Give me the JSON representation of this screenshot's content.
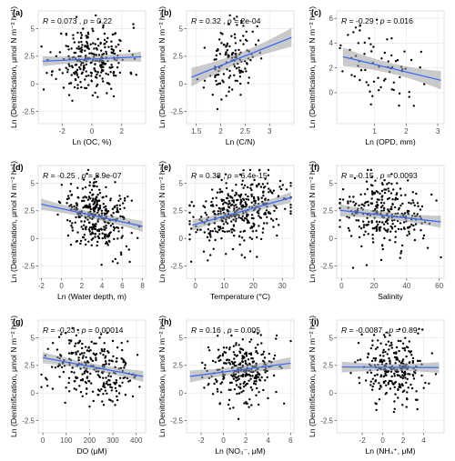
{
  "chart_data": [
    {
      "id": "a",
      "tag": "(a)",
      "type": "scatter",
      "xlabel": "Ln (OC, %)",
      "ylabel": "Ln (Denitrification, μmol N m⁻² h⁻¹)",
      "xlim": [
        -3.6,
        3.6
      ],
      "xticks": [
        -2,
        0,
        2
      ],
      "ylim": [
        -3.6,
        6.6
      ],
      "yticks": [
        -2.5,
        0,
        2.5,
        5
      ],
      "stats": {
        "R": "0.073",
        "p": "0.22"
      },
      "fit": {
        "x0": -3.3,
        "y0": 2.05,
        "x1": 3.3,
        "y1": 2.45
      },
      "ci": 0.3,
      "n": 280,
      "xmean": 0.0,
      "xsd": 1.2,
      "ymin": -3.0,
      "ymax": 6.2,
      "seed": 11,
      "show_ylabel": true
    },
    {
      "id": "b",
      "tag": "(b)",
      "type": "scatter",
      "xlabel": "Ln (C/N)",
      "ylabel": "Ln (Denitrification, μmol N m⁻² h⁻¹)",
      "xlim": [
        1.3,
        3.5
      ],
      "xticks": [
        1.5,
        2.0,
        2.5,
        3.0
      ],
      "ylim": [
        -3.6,
        6.6
      ],
      "yticks": [
        -2.5,
        0,
        2.5,
        5
      ],
      "stats": {
        "R": "0.32",
        "p": "2e-04"
      },
      "fit": {
        "x0": 1.4,
        "y0": 0.6,
        "x1": 3.45,
        "y1": 4.2
      },
      "ci": 0.7,
      "n": 130,
      "xmean": 2.2,
      "xsd": 0.25,
      "ymin": -2.5,
      "ymax": 6.2,
      "seed": 23,
      "show_ylabel": true
    },
    {
      "id": "c",
      "tag": "(c)",
      "type": "scatter",
      "xlabel": "Ln (OPD, mm)",
      "ylabel": "Ln (Denitrification, μmol N m⁻² h⁻¹)",
      "xlim": [
        -0.2,
        3.2
      ],
      "xticks": [
        1,
        2,
        3
      ],
      "ylim": [
        -2.5,
        6.6
      ],
      "yticks": [
        0,
        2,
        4,
        6
      ],
      "stats": {
        "R": "-0.29",
        "p": "0.016"
      },
      "fit": {
        "x0": 0.0,
        "y0": 2.9,
        "x1": 3.1,
        "y1": 1.0
      },
      "ci": 0.6,
      "n": 70,
      "xmean": 1.2,
      "xsd": 0.6,
      "ymin": -2.0,
      "ymax": 6.0,
      "seed": 37,
      "show_ylabel": true
    },
    {
      "id": "d",
      "tag": "(d)",
      "type": "scatter",
      "xlabel": "Ln (Water depth, m)",
      "ylabel": "Ln (Denitrification, μmol N m⁻² h⁻¹)",
      "xlim": [
        -2.3,
        8.3
      ],
      "xticks": [
        -2,
        0,
        2,
        4,
        6,
        8
      ],
      "ylim": [
        -3.6,
        6.6
      ],
      "yticks": [
        -2.5,
        0,
        2.5,
        5
      ],
      "stats": {
        "R": "-0.25",
        "p": "8.9e-07"
      },
      "fit": {
        "x0": -2,
        "y0": 3.1,
        "x1": 8,
        "y1": 1.1
      },
      "ci": 0.35,
      "n": 330,
      "xmean": 3.5,
      "xsd": 1.6,
      "ymin": -3.0,
      "ymax": 6.2,
      "seed": 41,
      "show_ylabel": true
    },
    {
      "id": "e",
      "tag": "(e)",
      "type": "scatter",
      "xlabel": "Temperature (°C)",
      "ylabel": "Ln (Denitrification, μmol N m⁻² h⁻¹)",
      "xlim": [
        -3,
        34
      ],
      "xticks": [
        0,
        10,
        20,
        30
      ],
      "ylim": [
        -3.6,
        6.6
      ],
      "yticks": [
        -2.5,
        0,
        2.5,
        5
      ],
      "stats": {
        "R": "0.38",
        "p": "6.4e-15"
      },
      "fit": {
        "x0": -1,
        "y0": 1.2,
        "x1": 33,
        "y1": 3.7
      },
      "ci": 0.35,
      "n": 380,
      "xmean": 16,
      "xsd": 9,
      "ymin": -3.0,
      "ymax": 6.2,
      "seed": 53,
      "show_ylabel": true
    },
    {
      "id": "f",
      "tag": "(f)",
      "type": "scatter",
      "xlabel": "Salinity",
      "ylabel": "Ln (Denitrification, μmol N m⁻² h⁻¹)",
      "xlim": [
        -3,
        63
      ],
      "xticks": [
        0,
        20,
        40,
        60
      ],
      "ylim": [
        -3.6,
        6.6
      ],
      "yticks": [
        -2.5,
        0,
        2.5,
        5
      ],
      "stats": {
        "R": "-0.15",
        "p": "0.0093"
      },
      "fit": {
        "x0": -1,
        "y0": 2.55,
        "x1": 61,
        "y1": 1.5
      },
      "ci": 0.4,
      "n": 290,
      "xmean": 25,
      "xsd": 12,
      "ymin": -3.0,
      "ymax": 6.2,
      "seed": 67,
      "show_ylabel": true
    },
    {
      "id": "g",
      "tag": "(g)",
      "type": "scatter",
      "xlabel": "DO (μM)",
      "ylabel": "Ln (Denitrification, μmol N m⁻² h⁻¹)",
      "xlim": [
        -20,
        440
      ],
      "xticks": [
        0,
        100,
        200,
        300,
        400
      ],
      "ylim": [
        -3.6,
        6.6
      ],
      "yticks": [
        -2.5,
        0,
        2.5,
        5
      ],
      "stats": {
        "R": "-0.23",
        "p": "0.00014"
      },
      "fit": {
        "x0": 0,
        "y0": 3.2,
        "x1": 430,
        "y1": 1.5
      },
      "ci": 0.35,
      "n": 260,
      "xmean": 210,
      "xsd": 95,
      "ymin": -2.8,
      "ymax": 6.2,
      "seed": 79,
      "show_ylabel": true
    },
    {
      "id": "h",
      "tag": "(h)",
      "type": "scatter",
      "xlabel": "Ln (NO₃⁻, μM)",
      "ylabel": "Ln (Denitrification, μmol N m⁻² h⁻¹)",
      "xlim": [
        -3.3,
        6.3
      ],
      "xticks": [
        -2,
        0,
        2,
        4,
        6
      ],
      "ylim": [
        -3.6,
        6.6
      ],
      "yticks": [
        -2.5,
        0,
        2.5,
        5
      ],
      "stats": {
        "R": "0.16",
        "p": "0.005"
      },
      "fit": {
        "x0": -3,
        "y0": 1.5,
        "x1": 6,
        "y1": 2.7
      },
      "ci": 0.4,
      "n": 280,
      "xmean": 1.5,
      "xsd": 1.6,
      "ymin": -2.8,
      "ymax": 6.0,
      "seed": 97,
      "show_ylabel": true
    },
    {
      "id": "i",
      "tag": "(i)",
      "type": "scatter",
      "xlabel": "Ln (NH₄⁺, μM)",
      "ylabel": "Ln (Denitrification, μmol N m⁻² h⁻¹)",
      "xlim": [
        -4.5,
        6.0
      ],
      "xticks": [
        -2,
        0,
        2,
        4
      ],
      "ylim": [
        -3.6,
        6.6
      ],
      "yticks": [
        -2.5,
        0,
        2.5,
        5
      ],
      "stats": {
        "R": "-0.0087",
        "p": "0.89"
      },
      "fit": {
        "x0": -4,
        "y0": 2.35,
        "x1": 5.5,
        "y1": 2.3
      },
      "ci": 0.35,
      "n": 260,
      "xmean": 1.0,
      "xsd": 1.5,
      "ymin": -2.8,
      "ymax": 6.0,
      "seed": 101,
      "show_ylabel": true
    }
  ]
}
